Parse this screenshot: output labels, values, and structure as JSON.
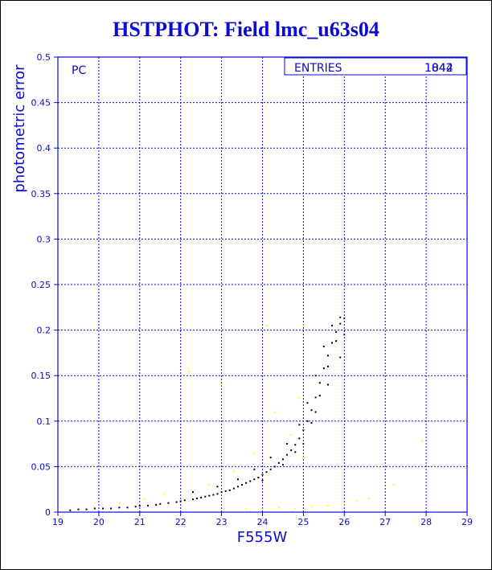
{
  "page": {
    "title": "HSTPHOT: Field lmc_u63s04"
  },
  "chart_data": {
    "type": "scatter",
    "title": "HSTPHOT: Field lmc_u63s04",
    "xlabel": "F555W",
    "ylabel": "photometric error",
    "xlim": [
      19,
      29
    ],
    "ylim": [
      0,
      0.5
    ],
    "x_ticks": [
      "19",
      "20",
      "21",
      "22",
      "23",
      "24",
      "25",
      "26",
      "27",
      "28",
      "29"
    ],
    "y_ticks": [
      "0",
      "0.05",
      "0.1",
      "0.15",
      "0.2",
      "0.25",
      "0.3",
      "0.35",
      "0.4",
      "0.45",
      "0.5"
    ],
    "grid": true,
    "panel_label": "PC",
    "stats": {
      "label": "ENTRIES",
      "values": [
        "1044",
        "1842"
      ]
    },
    "colors": {
      "axis": "#0a0ad2",
      "grid": "#0a0ad2",
      "series_main": "#000000",
      "series_secondary": "#ffff00"
    },
    "series": [
      {
        "color": "#000000",
        "points": [
          [
            19.3,
            0.002
          ],
          [
            19.5,
            0.003
          ],
          [
            19.7,
            0.003
          ],
          [
            19.9,
            0.004
          ],
          [
            20.1,
            0.004
          ],
          [
            20.3,
            0.004
          ],
          [
            20.5,
            0.005
          ],
          [
            20.7,
            0.005
          ],
          [
            20.9,
            0.006
          ],
          [
            21.0,
            0.007
          ],
          [
            21.2,
            0.007
          ],
          [
            21.4,
            0.008
          ],
          [
            21.5,
            0.009
          ],
          [
            21.7,
            0.01
          ],
          [
            21.9,
            0.011
          ],
          [
            22.0,
            0.012
          ],
          [
            22.1,
            0.013
          ],
          [
            22.3,
            0.014
          ],
          [
            22.4,
            0.015
          ],
          [
            22.5,
            0.016
          ],
          [
            22.6,
            0.017
          ],
          [
            22.7,
            0.018
          ],
          [
            22.8,
            0.019
          ],
          [
            22.9,
            0.02
          ],
          [
            23.0,
            0.022
          ],
          [
            23.1,
            0.023
          ],
          [
            23.2,
            0.024
          ],
          [
            23.3,
            0.026
          ],
          [
            23.4,
            0.028
          ],
          [
            23.5,
            0.03
          ],
          [
            23.6,
            0.032
          ],
          [
            23.7,
            0.034
          ],
          [
            23.8,
            0.036
          ],
          [
            23.9,
            0.038
          ],
          [
            24.0,
            0.041
          ],
          [
            24.1,
            0.044
          ],
          [
            24.2,
            0.047
          ],
          [
            24.3,
            0.05
          ],
          [
            24.4,
            0.054
          ],
          [
            24.5,
            0.058
          ],
          [
            24.6,
            0.063
          ],
          [
            24.7,
            0.068
          ],
          [
            24.8,
            0.074
          ],
          [
            24.9,
            0.081
          ],
          [
            25.0,
            0.09
          ],
          [
            25.1,
            0.1
          ],
          [
            25.2,
            0.112
          ],
          [
            25.3,
            0.126
          ],
          [
            25.4,
            0.142
          ],
          [
            25.5,
            0.158
          ],
          [
            25.6,
            0.172
          ],
          [
            25.7,
            0.186
          ],
          [
            25.8,
            0.198
          ],
          [
            25.9,
            0.207
          ],
          [
            26.0,
            0.213
          ],
          [
            22.3,
            0.022
          ],
          [
            22.9,
            0.028
          ],
          [
            23.4,
            0.036
          ],
          [
            23.8,
            0.047
          ],
          [
            24.2,
            0.06
          ],
          [
            24.6,
            0.075
          ],
          [
            24.9,
            0.096
          ],
          [
            25.1,
            0.12
          ],
          [
            25.3,
            0.15
          ],
          [
            25.5,
            0.182
          ],
          [
            25.7,
            0.205
          ],
          [
            25.9,
            0.214
          ],
          [
            24.0,
            0.035
          ],
          [
            24.5,
            0.052
          ],
          [
            24.8,
            0.066
          ],
          [
            25.2,
            0.098
          ],
          [
            25.4,
            0.128
          ],
          [
            25.6,
            0.16
          ],
          [
            25.8,
            0.188
          ],
          [
            25.0,
            0.075
          ],
          [
            25.3,
            0.11
          ],
          [
            25.6,
            0.14
          ],
          [
            25.9,
            0.17
          ],
          [
            26.0,
            0.195
          ]
        ]
      },
      {
        "color": "#ffff00",
        "points": [
          [
            20.5,
            0.01
          ],
          [
            21.1,
            0.014
          ],
          [
            21.6,
            0.02
          ],
          [
            22.2,
            0.155
          ],
          [
            22.7,
            0.03
          ],
          [
            23.0,
            0.14
          ],
          [
            23.3,
            0.045
          ],
          [
            23.6,
            0.004
          ],
          [
            24.0,
            0.003
          ],
          [
            24.4,
            0.005
          ],
          [
            24.8,
            0.004
          ],
          [
            25.2,
            0.006
          ],
          [
            25.6,
            0.007
          ],
          [
            26.0,
            0.009
          ],
          [
            26.3,
            0.012
          ],
          [
            26.6,
            0.015
          ],
          [
            27.2,
            0.03
          ],
          [
            27.9,
            0.078
          ],
          [
            24.3,
            0.11
          ],
          [
            24.7,
            0.085
          ],
          [
            25.0,
            0.06
          ],
          [
            24.9,
            0.125
          ],
          [
            23.8,
            0.065
          ],
          [
            24.1,
            0.205
          ],
          [
            25.0,
            0.205
          ]
        ]
      }
    ]
  }
}
